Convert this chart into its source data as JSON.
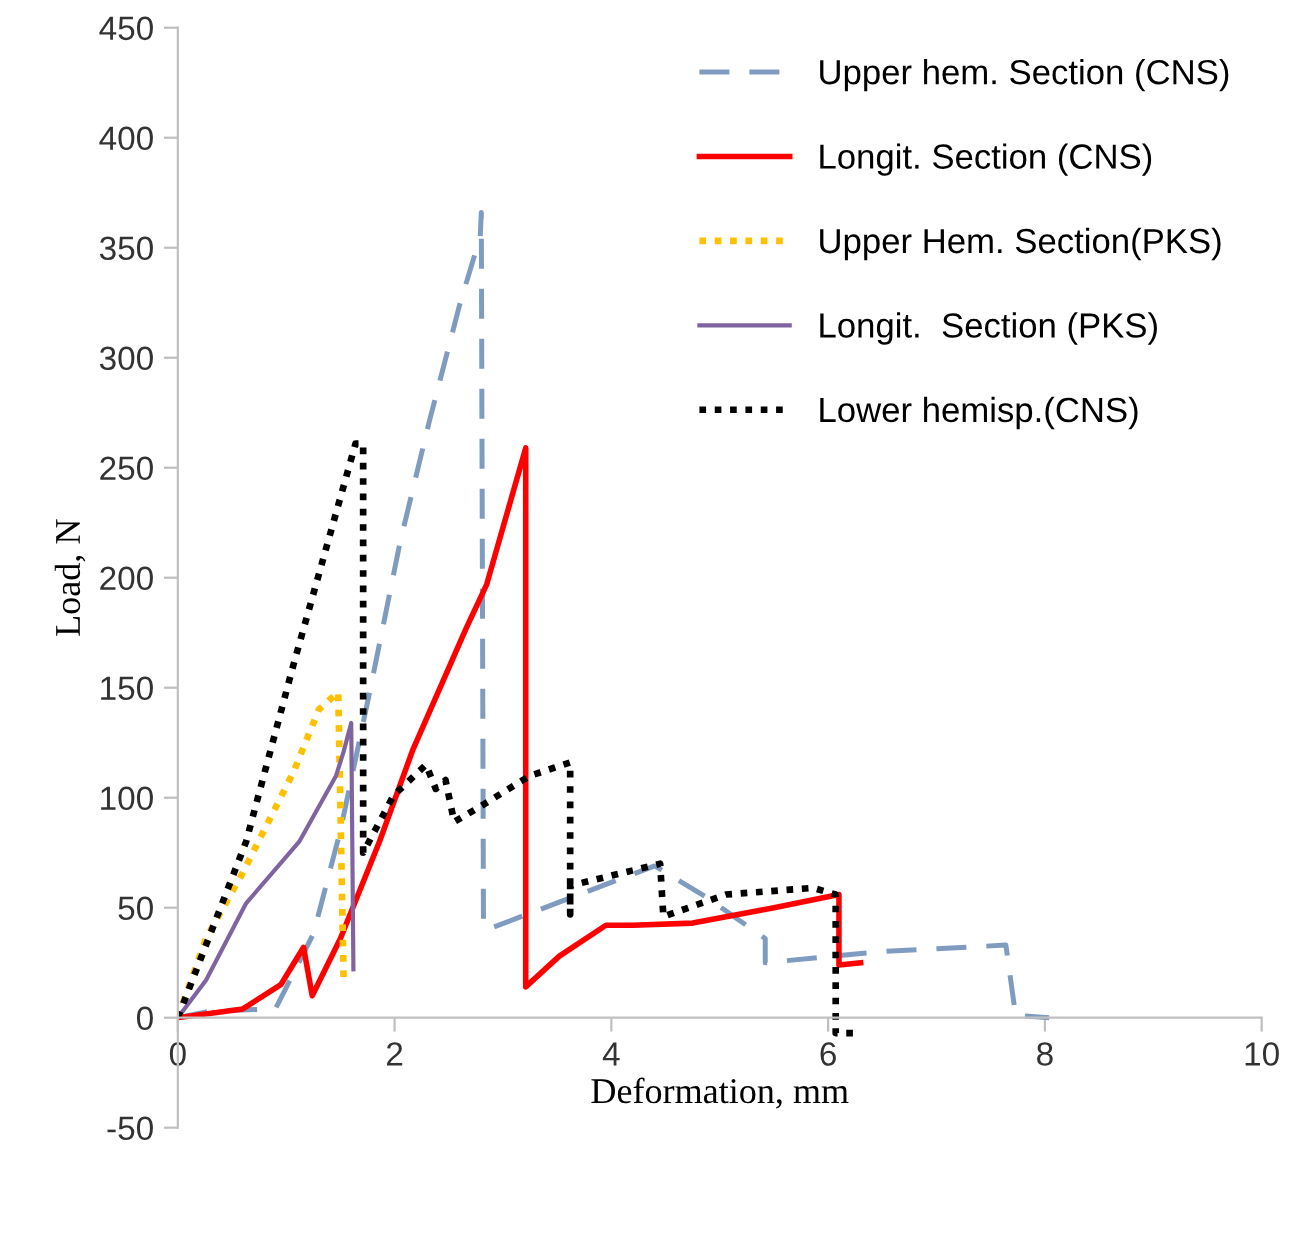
{
  "chart_data": {
    "type": "line",
    "xlabel": "Deformation, mm",
    "ylabel": "Load, N",
    "xlim": [
      0,
      10
    ],
    "ylim": [
      -50,
      450
    ],
    "xticks": [
      0,
      2,
      4,
      6,
      8,
      10
    ],
    "yticks": [
      -50,
      0,
      50,
      100,
      150,
      200,
      250,
      300,
      350,
      400,
      450
    ],
    "grid": false,
    "legend": "top right",
    "marker": "none",
    "series": [
      {
        "name": "Upper hem. Section (CNS)",
        "color": "#7f9cc0",
        "line_style": "dashed",
        "x": [
          0,
          0.3,
          0.9,
          1.25,
          1.5,
          1.77,
          2.05,
          2.32,
          2.6,
          2.79,
          2.8,
          2.82,
          2.85,
          4.4,
          4.87,
          5.42,
          5.42,
          6.48,
          7.64,
          7.73,
          8.04
        ],
        "values": [
          0,
          3,
          4,
          38,
          85,
          148,
          216,
          271,
          324,
          355,
          366,
          42,
          40,
          69,
          55,
          36,
          25,
          30,
          33,
          1,
          0
        ]
      },
      {
        "name": "Longit. Section (CNS)",
        "color": "#ff0000",
        "line_style": "solid",
        "x": [
          0,
          0.6,
          0.95,
          1.16,
          1.24,
          1.5,
          1.86,
          2.17,
          2.42,
          2.66,
          2.85,
          3.21,
          3.21,
          3.52,
          3.95,
          4.2,
          4.75,
          5.5,
          6.1,
          6.1,
          6.3
        ],
        "values": [
          0,
          4,
          15,
          32,
          10,
          36,
          80,
          122,
          150,
          177,
          197,
          259,
          14,
          28,
          42,
          42,
          43,
          50,
          56,
          24,
          25
        ]
      },
      {
        "name": "Upper Hem. Section(PKS)",
        "color": "#ffc000",
        "line_style": "dotted",
        "x": [
          0,
          0.26,
          0.6,
          1.07,
          1.3,
          1.48,
          1.53
        ],
        "values": [
          0,
          36,
          66,
          112,
          140,
          148,
          16
        ]
      },
      {
        "name": "Longit.  Section (PKS)",
        "color": "#8064a2",
        "line_style": "solid",
        "x": [
          0,
          0.26,
          0.63,
          1.12,
          1.46,
          1.53,
          1.6,
          1.62
        ],
        "values": [
          0,
          17,
          52,
          80,
          110,
          121,
          134,
          22
        ]
      },
      {
        "name": "Lower hemisp.(CNS)",
        "color": "#000000",
        "line_style": "dotted",
        "x": [
          0,
          0.63,
          1.07,
          1.64,
          1.71,
          1.71,
          1.99,
          2.29,
          2.38,
          2.47,
          2.55,
          2.79,
          3.25,
          3.62,
          3.62,
          3.62,
          4.45,
          4.48,
          5.06,
          5.86,
          6.07,
          6.07,
          6.3
        ],
        "values": [
          0,
          80,
          161,
          261,
          261,
          75,
          101,
          115,
          104,
          108,
          89,
          96,
          110,
          116,
          47,
          60,
          70,
          46,
          56,
          59,
          56,
          -7,
          -7
        ]
      }
    ]
  }
}
